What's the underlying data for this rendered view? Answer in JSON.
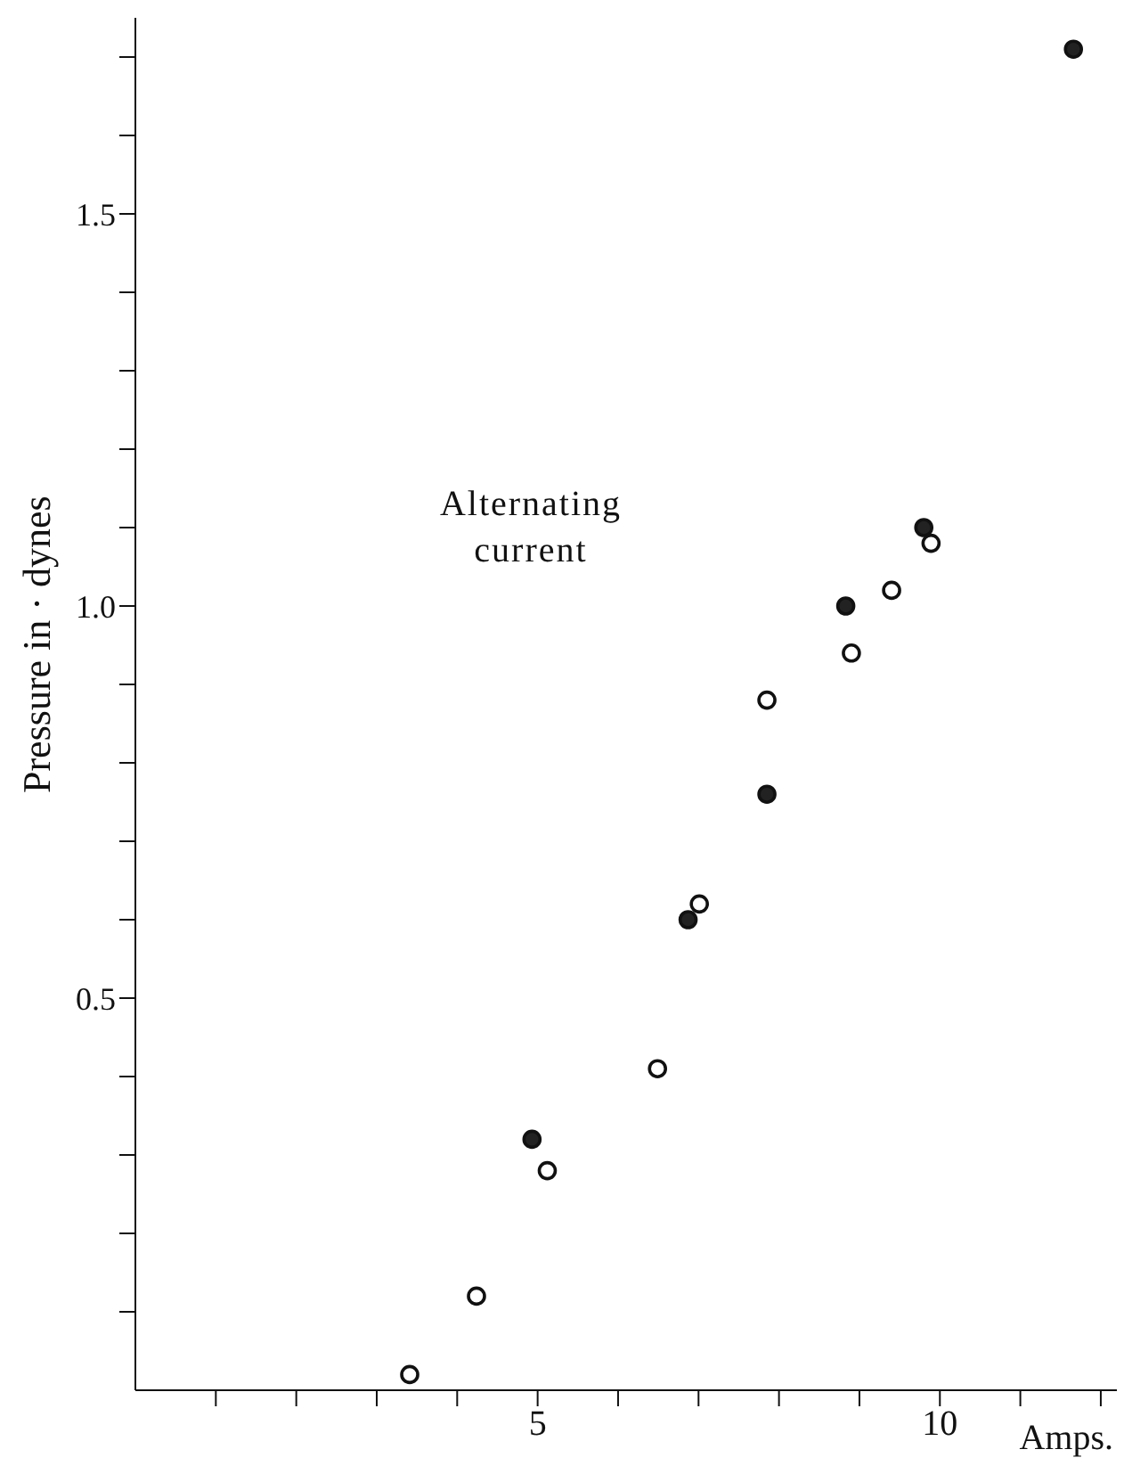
{
  "chart_data": {
    "type": "scatter",
    "xlabel": "Amps.",
    "ylabel": "Pressure  in · dynes",
    "annotations": [
      "Alternating current"
    ],
    "xlim": [
      0,
      12.2
    ],
    "ylim": [
      0,
      1.75
    ],
    "xticks": [
      {
        "value": 1,
        "label": null
      },
      {
        "value": 2,
        "label": null
      },
      {
        "value": 3,
        "label": null
      },
      {
        "value": 4,
        "label": null
      },
      5,
      {
        "value": 6,
        "label": null
      },
      {
        "value": 7,
        "label": null
      },
      {
        "value": 8,
        "label": null
      },
      {
        "value": 9,
        "label": null
      },
      10,
      {
        "value": 11,
        "label": null
      },
      {
        "value": 12,
        "label": null
      }
    ],
    "yticks": [
      {
        "value": 0.1,
        "label": null
      },
      {
        "value": 0.2,
        "label": null
      },
      {
        "value": 0.3,
        "label": null
      },
      {
        "value": 0.4,
        "label": null
      },
      0.5,
      {
        "value": 0.6,
        "label": null
      },
      {
        "value": 0.7,
        "label": null
      },
      {
        "value": 0.8,
        "label": null
      },
      {
        "value": 0.9,
        "label": null
      },
      {
        "value": 1.0,
        "label": "1.0"
      },
      {
        "value": 1.1,
        "label": null
      },
      {
        "value": 1.2,
        "label": null
      },
      {
        "value": 1.3,
        "label": null
      },
      {
        "value": 1.4,
        "label": null
      },
      1.5,
      {
        "value": 1.6,
        "label": null
      },
      {
        "value": 1.7,
        "label": null
      }
    ],
    "marker": "circle",
    "grid": false,
    "legend": false,
    "series": [
      {
        "color": "#222222",
        "x": [
          4.93,
          6.87,
          7.85,
          8.83,
          9.8,
          11.66
        ],
        "values": [
          0.32,
          0.6,
          0.76,
          1.0,
          1.1,
          1.71
        ]
      },
      {
        "color": "#ffffff",
        "x": [
          3.41,
          4.24,
          5.12,
          6.49,
          7.01,
          7.85,
          8.9,
          9.4,
          9.89
        ],
        "values": [
          0.02,
          0.12,
          0.28,
          0.41,
          0.62,
          0.88,
          0.94,
          1.02,
          1.08
        ]
      }
    ]
  }
}
